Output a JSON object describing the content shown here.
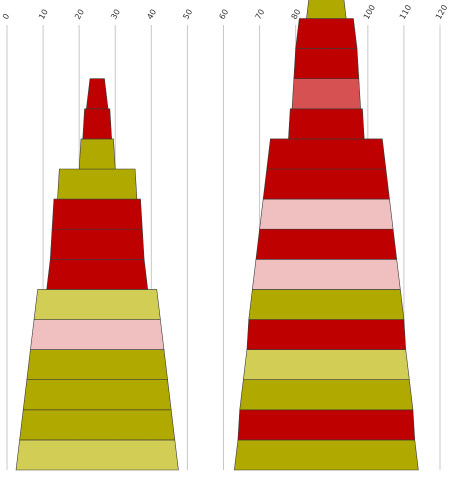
{
  "chart_data": {
    "type": "bar",
    "subtype": "stacked-pyramid",
    "x_axis": {
      "ticks": [
        "0",
        "10",
        "20",
        "30",
        "40",
        "50",
        "60",
        "70",
        "80",
        "90",
        "100",
        "110",
        "120"
      ],
      "range": [
        0,
        120
      ],
      "grid": true,
      "tick_label_rotation": -60
    },
    "palette": {
      "olive": "#b0aa00",
      "light_olive": "#d2cd55",
      "red": "#bf0000",
      "medium_red": "#d65151",
      "pink": "#f0c0c0"
    },
    "stacks": [
      {
        "center": 25,
        "blocks": [
          {
            "half_width_bottom": 22.5,
            "half_width_top": 21.5,
            "color": "light_olive"
          },
          {
            "half_width_bottom": 21.5,
            "half_width_top": 20.5,
            "color": "olive"
          },
          {
            "half_width_bottom": 20.5,
            "half_width_top": 19.5,
            "color": "olive"
          },
          {
            "half_width_bottom": 19.5,
            "half_width_top": 18.5,
            "color": "olive"
          },
          {
            "half_width_bottom": 18.5,
            "half_width_top": 17.5,
            "color": "pink"
          },
          {
            "half_width_bottom": 17.5,
            "half_width_top": 16.5,
            "color": "light_olive"
          },
          {
            "half_width_bottom": 14.0,
            "half_width_top": 13.0,
            "color": "red"
          },
          {
            "half_width_bottom": 13.0,
            "half_width_top": 12.5,
            "color": "red"
          },
          {
            "half_width_bottom": 12.5,
            "half_width_top": 12.0,
            "color": "red"
          },
          {
            "half_width_bottom": 11.0,
            "half_width_top": 10.5,
            "color": "olive"
          },
          {
            "half_width_bottom": 5.0,
            "half_width_top": 4.5,
            "color": "olive"
          },
          {
            "half_width_bottom": 4.0,
            "half_width_top": 3.5,
            "color": "red"
          },
          {
            "half_width_bottom": 3.0,
            "half_width_top": 2.0,
            "color": "red"
          }
        ]
      },
      {
        "center": 88.5,
        "blocks": [
          {
            "half_width_bottom": 25.5,
            "half_width_top": 24.5,
            "color": "olive"
          },
          {
            "half_width_bottom": 24.5,
            "half_width_top": 24.0,
            "color": "red"
          },
          {
            "half_width_bottom": 24.0,
            "half_width_top": 23.0,
            "color": "olive"
          },
          {
            "half_width_bottom": 23.0,
            "half_width_top": 22.0,
            "color": "light_olive"
          },
          {
            "half_width_bottom": 22.0,
            "half_width_top": 21.5,
            "color": "red"
          },
          {
            "half_width_bottom": 21.5,
            "half_width_top": 20.5,
            "color": "olive"
          },
          {
            "half_width_bottom": 20.5,
            "half_width_top": 19.5,
            "color": "pink"
          },
          {
            "half_width_bottom": 19.5,
            "half_width_top": 18.5,
            "color": "red"
          },
          {
            "half_width_bottom": 18.5,
            "half_width_top": 17.5,
            "color": "pink"
          },
          {
            "half_width_bottom": 17.5,
            "half_width_top": 16.5,
            "color": "red"
          },
          {
            "half_width_bottom": 16.5,
            "half_width_top": 15.5,
            "color": "red"
          },
          {
            "half_width_bottom": 10.5,
            "half_width_top": 10.0,
            "color": "red"
          },
          {
            "half_width_bottom": 9.5,
            "half_width_top": 9.0,
            "color": "medium_red"
          },
          {
            "half_width_bottom": 9.0,
            "half_width_top": 8.5,
            "color": "red"
          },
          {
            "half_width_bottom": 8.5,
            "half_width_top": 7.5,
            "color": "red"
          },
          {
            "half_width_bottom": 5.5,
            "half_width_top": 4.5,
            "color": "olive"
          }
        ]
      }
    ]
  }
}
